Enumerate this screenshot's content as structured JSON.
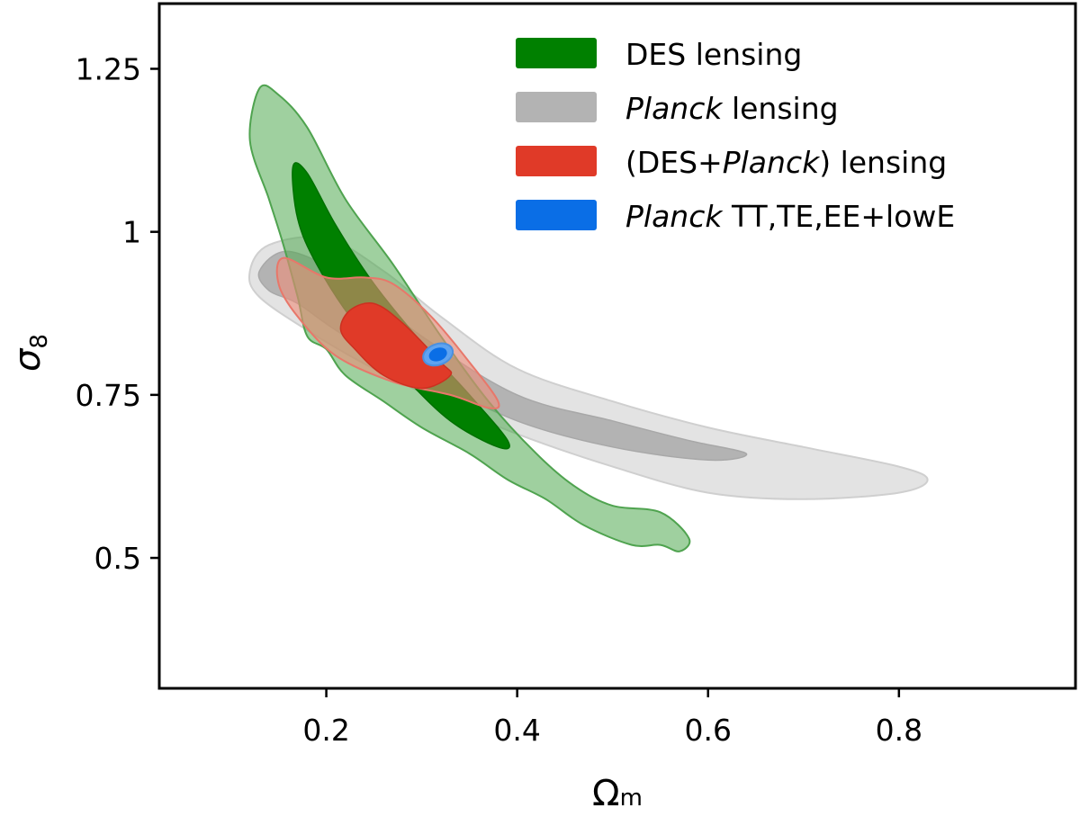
{
  "chart_data": {
    "type": "contour",
    "title": "",
    "xlabel": "Ωm",
    "ylabel": "σ8",
    "xlim": [
      0.025,
      0.985
    ],
    "ylim": [
      0.3,
      1.35
    ],
    "xticks": [
      0.2,
      0.4,
      0.6,
      0.8
    ],
    "xtick_labels": [
      "0.2",
      "0.4",
      "0.6",
      "0.8"
    ],
    "yticks": [
      0.5,
      0.75,
      1.0,
      1.25
    ],
    "ytick_labels": [
      "0.5",
      "0.75",
      "1",
      "1.25"
    ],
    "legend_position": "top-right",
    "series": [
      {
        "id": "planck-lensing",
        "name": "Planck lensing",
        "legend": {
          "italic": "Planck",
          "rest": " lensing"
        },
        "color": "#b3b3b3",
        "outer_fill": "#e3e3e3",
        "outer_stroke": "#cfcfcf",
        "inner_fill": "#b3b3b3",
        "inner_stroke": "#a8a8a8",
        "outer_contour": [
          [
            0.14,
            0.98
          ],
          [
            0.2,
            0.99
          ],
          [
            0.26,
            0.94
          ],
          [
            0.32,
            0.87
          ],
          [
            0.4,
            0.79
          ],
          [
            0.5,
            0.74
          ],
          [
            0.6,
            0.7
          ],
          [
            0.7,
            0.67
          ],
          [
            0.8,
            0.64
          ],
          [
            0.83,
            0.62
          ],
          [
            0.8,
            0.6
          ],
          [
            0.7,
            0.59
          ],
          [
            0.6,
            0.6
          ],
          [
            0.5,
            0.64
          ],
          [
            0.4,
            0.69
          ],
          [
            0.32,
            0.74
          ],
          [
            0.25,
            0.79
          ],
          [
            0.19,
            0.84
          ],
          [
            0.13,
            0.9
          ],
          [
            0.12,
            0.94
          ]
        ],
        "inner_contour": [
          [
            0.13,
            0.94
          ],
          [
            0.16,
            0.97
          ],
          [
            0.22,
            0.93
          ],
          [
            0.3,
            0.84
          ],
          [
            0.4,
            0.75
          ],
          [
            0.5,
            0.71
          ],
          [
            0.58,
            0.68
          ],
          [
            0.64,
            0.66
          ],
          [
            0.6,
            0.65
          ],
          [
            0.5,
            0.67
          ],
          [
            0.4,
            0.71
          ],
          [
            0.3,
            0.78
          ],
          [
            0.22,
            0.84
          ],
          [
            0.17,
            0.89
          ],
          [
            0.14,
            0.91
          ]
        ]
      },
      {
        "id": "des-lensing",
        "name": "DES lensing",
        "legend": {
          "italic": "",
          "rest": "DES lensing"
        },
        "color": "#008000",
        "outer_fill": "rgba(80,170,80,0.55)",
        "outer_stroke": "#4fa34f",
        "inner_fill": "#008000",
        "inner_stroke": "#007000",
        "outer_contour": [
          [
            0.13,
            1.22
          ],
          [
            0.15,
            1.21
          ],
          [
            0.18,
            1.16
          ],
          [
            0.22,
            1.05
          ],
          [
            0.27,
            0.95
          ],
          [
            0.32,
            0.84
          ],
          [
            0.37,
            0.74
          ],
          [
            0.42,
            0.66
          ],
          [
            0.46,
            0.61
          ],
          [
            0.5,
            0.58
          ],
          [
            0.55,
            0.57
          ],
          [
            0.58,
            0.53
          ],
          [
            0.57,
            0.51
          ],
          [
            0.55,
            0.52
          ],
          [
            0.52,
            0.52
          ],
          [
            0.47,
            0.55
          ],
          [
            0.43,
            0.59
          ],
          [
            0.39,
            0.62
          ],
          [
            0.35,
            0.66
          ],
          [
            0.3,
            0.7
          ],
          [
            0.26,
            0.74
          ],
          [
            0.22,
            0.78
          ],
          [
            0.2,
            0.82
          ],
          [
            0.18,
            0.84
          ],
          [
            0.17,
            0.9
          ],
          [
            0.155,
            0.98
          ],
          [
            0.14,
            1.05
          ],
          [
            0.12,
            1.14
          ]
        ],
        "inner_contour": [
          [
            0.165,
            1.1
          ],
          [
            0.18,
            1.09
          ],
          [
            0.21,
            1.01
          ],
          [
            0.25,
            0.92
          ],
          [
            0.3,
            0.83
          ],
          [
            0.35,
            0.75
          ],
          [
            0.39,
            0.68
          ],
          [
            0.38,
            0.67
          ],
          [
            0.33,
            0.71
          ],
          [
            0.28,
            0.78
          ],
          [
            0.23,
            0.86
          ],
          [
            0.19,
            0.95
          ],
          [
            0.17,
            1.02
          ]
        ]
      },
      {
        "id": "des-planck-lensing",
        "name": "(DES+Planck) lensing",
        "legend": {
          "pre": "(DES+",
          "italic": "Planck",
          "rest": ") lensing"
        },
        "color": "#e03a28",
        "outer_fill": "rgba(236,140,120,0.6)",
        "outer_stroke": "#e8776a",
        "inner_fill": "#e03a28",
        "inner_stroke": "#cc3020",
        "outer_contour": [
          [
            0.155,
            0.96
          ],
          [
            0.2,
            0.93
          ],
          [
            0.24,
            0.93
          ],
          [
            0.27,
            0.92
          ],
          [
            0.31,
            0.87
          ],
          [
            0.35,
            0.8
          ],
          [
            0.38,
            0.74
          ],
          [
            0.37,
            0.73
          ],
          [
            0.33,
            0.75
          ],
          [
            0.27,
            0.77
          ],
          [
            0.21,
            0.81
          ],
          [
            0.17,
            0.87
          ],
          [
            0.15,
            0.92
          ]
        ],
        "inner_contour": [
          [
            0.225,
            0.88
          ],
          [
            0.25,
            0.89
          ],
          [
            0.28,
            0.86
          ],
          [
            0.32,
            0.8
          ],
          [
            0.33,
            0.78
          ],
          [
            0.3,
            0.76
          ],
          [
            0.26,
            0.78
          ],
          [
            0.23,
            0.82
          ],
          [
            0.215,
            0.85
          ]
        ]
      },
      {
        "id": "planck-tt-te-ee-lowe",
        "name": "Planck TT,TE,EE+lowE",
        "legend": {
          "italic": "Planck",
          "rest": " TT,TE,EE+lowE"
        },
        "color": "#0a6ee6",
        "outer_fill": "#5fa3f0",
        "outer_stroke": "#4a90e0",
        "inner_fill": "#0a6ee6",
        "inner_stroke": "#0a6ee6",
        "ellipse": {
          "cx": 0.317,
          "cy": 0.812,
          "rx_outer": 0.016,
          "ry_outer": 0.016,
          "rx_inner": 0.009,
          "ry_inner": 0.009
        }
      }
    ],
    "legend_order": [
      "des-lensing",
      "planck-lensing",
      "des-planck-lensing",
      "planck-tt-te-ee-lowe"
    ]
  }
}
